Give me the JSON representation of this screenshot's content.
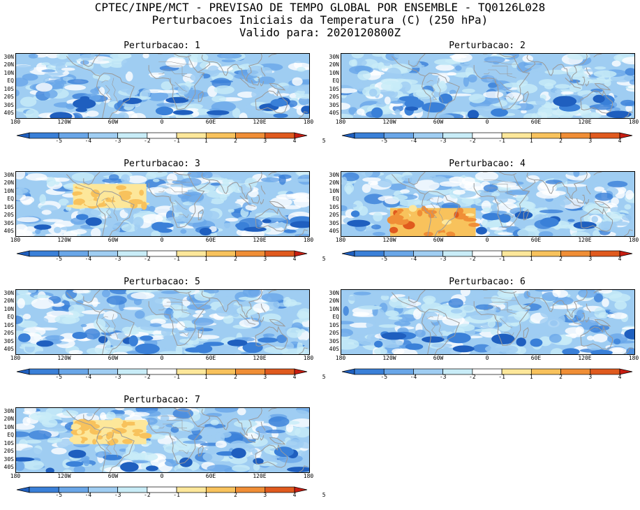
{
  "header": {
    "line1": "CPTEC/INPE/MCT - PREVISAO DE TEMPO GLOBAL POR ENSEMBLE - TQ0126L028",
    "line2": "Perturbacoes Iniciais da Temperatura (C) (250 hPa)",
    "line3": "Valido para: 2020120800Z"
  },
  "lat_labels": [
    "30N",
    "20N",
    "10N",
    "EQ",
    "10S",
    "20S",
    "30S",
    "40S"
  ],
  "lon_labels": [
    "180",
    "120W",
    "60W",
    "0",
    "60E",
    "120E",
    "180"
  ],
  "colorbar": {
    "ticks": [
      "-5",
      "-4",
      "-3",
      "-2",
      "-1",
      "1",
      "2",
      "3",
      "4",
      "5"
    ],
    "colors": [
      "#1f5fbf",
      "#3a80d8",
      "#69a6e8",
      "#9fcdf2",
      "#c8ecf7",
      "#ffffff",
      "#fde79a",
      "#f8c25c",
      "#f08e36",
      "#e05a1e",
      "#c81e12"
    ]
  },
  "panels": [
    {
      "title": "Perturbacao: 1",
      "warm_box": null
    },
    {
      "title": "Perturbacao: 2",
      "warm_box": null
    },
    {
      "title": "Perturbacao: 3",
      "warm_box": "tropical-atlantic"
    },
    {
      "title": "Perturbacao: 4",
      "warm_box": "south-america"
    },
    {
      "title": "Perturbacao: 5",
      "warm_box": null
    },
    {
      "title": "Perturbacao: 6",
      "warm_box": null
    },
    {
      "title": "Perturbacao: 7",
      "warm_box": "tropical-atlantic"
    }
  ]
}
